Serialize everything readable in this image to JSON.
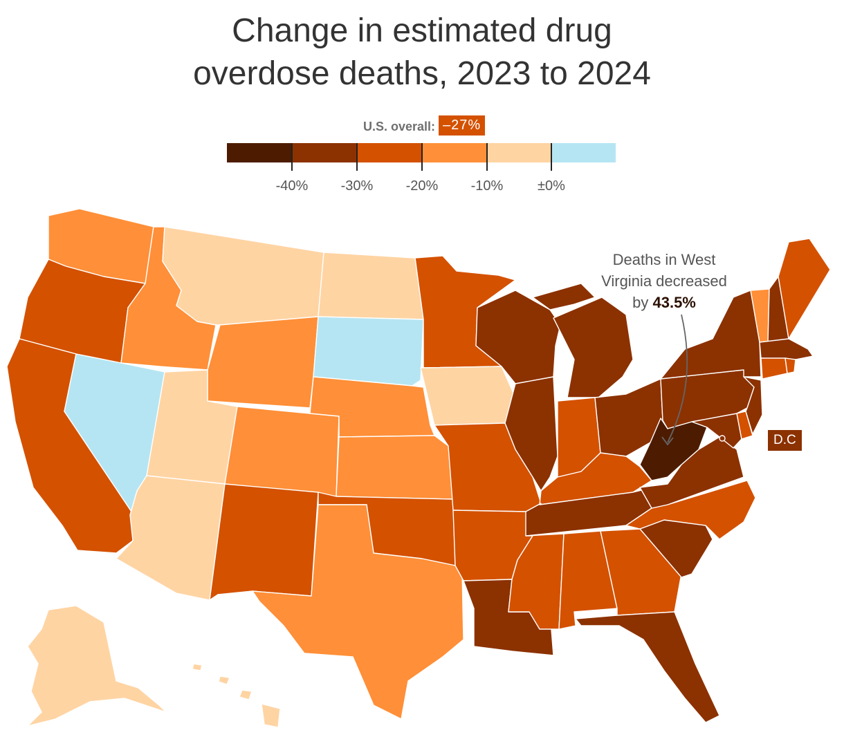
{
  "title": {
    "line1": "Change in estimated drug",
    "line2": "overdose deaths, 2023 to 2024"
  },
  "overall": {
    "label": "U.S. overall:",
    "value": "–27%",
    "color": "#d45100"
  },
  "legend": {
    "bins": [
      {
        "color": "#4d1c00"
      },
      {
        "color": "#8c3100"
      },
      {
        "color": "#d45100"
      },
      {
        "color": "#ff8f38"
      },
      {
        "color": "#ffd4a3"
      },
      {
        "color": "#b5e5f2"
      }
    ],
    "ticks": [
      "-40%",
      "-30%",
      "-20%",
      "-10%",
      "±0%"
    ]
  },
  "annotation": {
    "line1": "Deaths in West",
    "line2": "Virginia decreased",
    "prefix": "by ",
    "value": "43.5%"
  },
  "dc_label": "D.C",
  "states": {
    "WA": "#ff8f38",
    "OR": "#d45100",
    "CA": "#d45100",
    "ID": "#ff8f38",
    "NV": "#b5e5f2",
    "MT": "#ffd4a3",
    "WY": "#ff8f38",
    "UT": "#ffd4a3",
    "AZ": "#ffd4a3",
    "CO": "#ff8f38",
    "NM": "#d45100",
    "ND": "#ffd4a3",
    "SD": "#b5e5f2",
    "NE": "#ff8f38",
    "KS": "#ff8f38",
    "OK": "#d45100",
    "TX": "#ff8f38",
    "MN": "#d45100",
    "IA": "#ffd4a3",
    "MO": "#d45100",
    "AR": "#d45100",
    "LA": "#8c3100",
    "WI": "#8c3100",
    "IL": "#8c3100",
    "MI": "#8c3100",
    "IN": "#d45100",
    "OH": "#8c3100",
    "KY": "#d45100",
    "TN": "#8c3100",
    "MS": "#d45100",
    "AL": "#d45100",
    "GA": "#d45100",
    "FL": "#8c3100",
    "SC": "#8c3100",
    "NC": "#d45100",
    "VA": "#8c3100",
    "WV": "#4d1c00",
    "PA": "#8c3100",
    "NY": "#8c3100",
    "VT": "#ff8f38",
    "NH": "#8c3100",
    "ME": "#d45100",
    "MA": "#8c3100",
    "CT": "#d45100",
    "RI": "#d45100",
    "NJ": "#8c3100",
    "DE": "#d45100",
    "MD": "#8c3100",
    "AK": "#ffd4a3",
    "HI": "#ffd4a3",
    "DC": "#8c3100"
  },
  "wv_value": -43.5
}
